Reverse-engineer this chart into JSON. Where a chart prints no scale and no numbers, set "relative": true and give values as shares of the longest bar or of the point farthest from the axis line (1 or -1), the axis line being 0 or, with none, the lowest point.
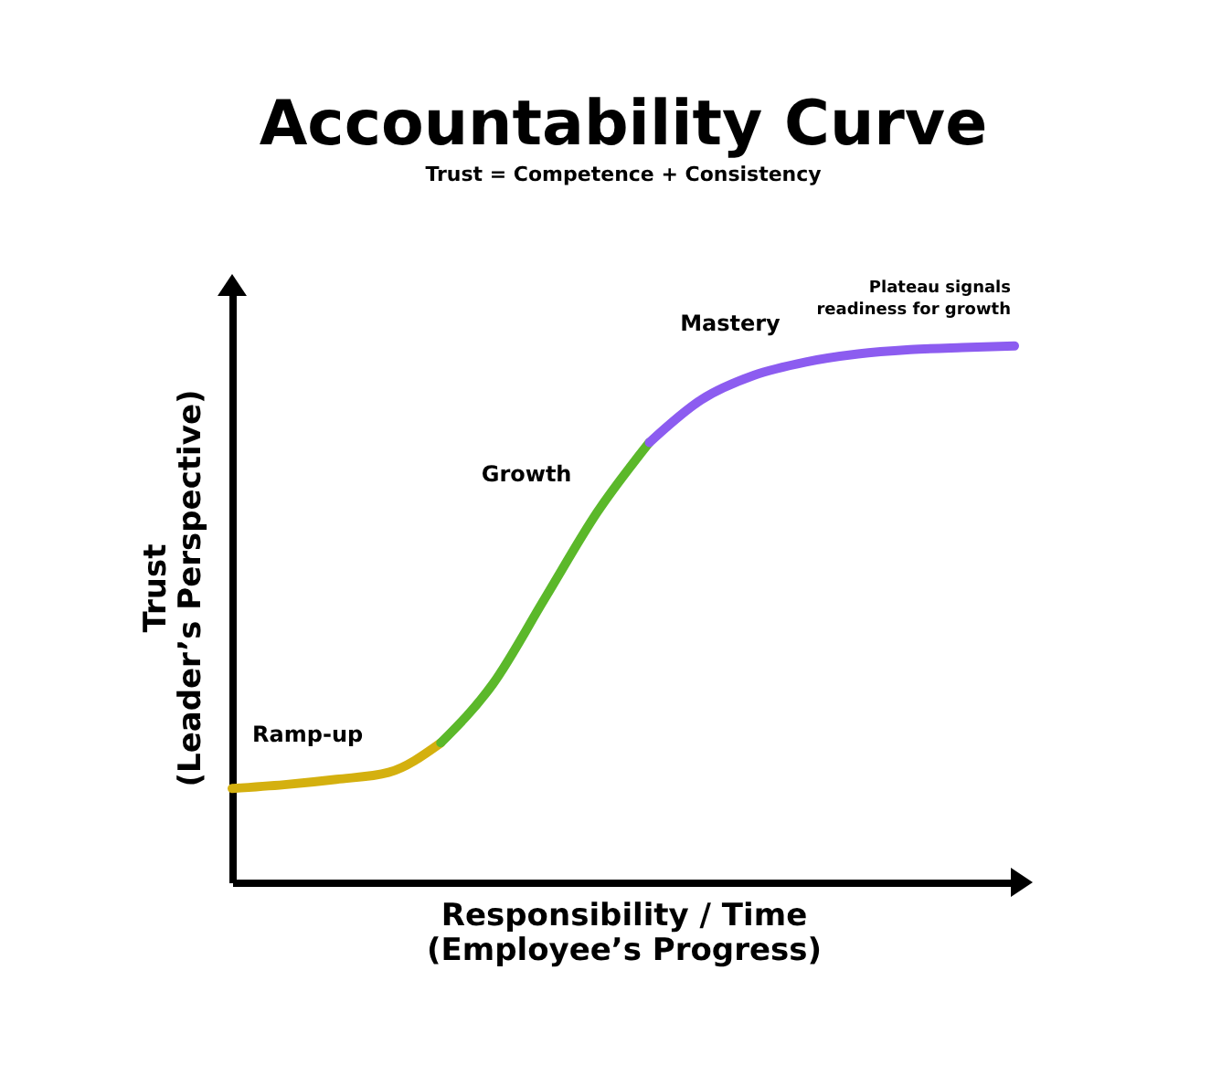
{
  "chart_data": {
    "type": "line",
    "title": "Accountability Curve",
    "subtitle": "Trust = Competence + Consistency",
    "xlabel": "Responsibility / Time\n(Employee’s Progress)",
    "ylabel": "Trust\n(Leader’s Perspective)",
    "relative": true,
    "legend": false,
    "grid": false,
    "marker": "none",
    "line_style": "solid",
    "categories": [
      null,
      null,
      null,
      null,
      null,
      null,
      null,
      null,
      null,
      null,
      null,
      null,
      null,
      null,
      null,
      null
    ],
    "series": [
      {
        "name": "Ramp-up",
        "color": "#d4b00f",
        "values": [
          0.175,
          0.182,
          0.192,
          0.205,
          0.26,
          null,
          null,
          null,
          null,
          null,
          null,
          null,
          null,
          null,
          null,
          null
        ]
      },
      {
        "name": "Growth",
        "color": "#5bb82a",
        "values": [
          null,
          null,
          null,
          null,
          0.26,
          0.37,
          0.53,
          0.69,
          0.82,
          null,
          null,
          null,
          null,
          null,
          null,
          null
        ]
      },
      {
        "name": "Mastery",
        "color": "#8c5cf0",
        "values": [
          null,
          null,
          null,
          null,
          null,
          null,
          null,
          null,
          0.82,
          0.9,
          0.945,
          0.97,
          0.985,
          0.993,
          0.997,
          1
        ]
      }
    ],
    "annotations": [
      "Plateau signals readiness for growth"
    ]
  }
}
